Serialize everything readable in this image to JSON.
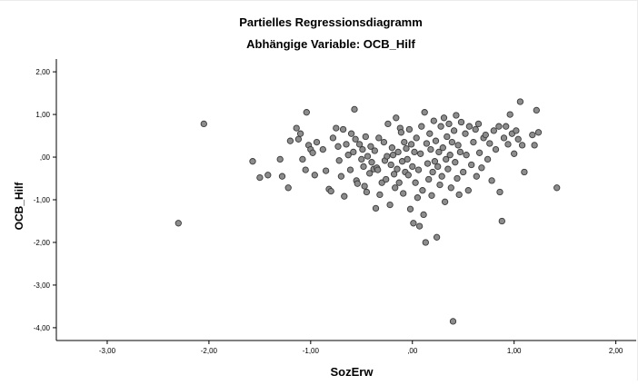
{
  "chart_data": {
    "type": "scatter",
    "title": "Partielles Regressionsdiagramm",
    "subtitle": "Abhängige Variable: OCB_Hilf",
    "xlabel": "SozErw",
    "ylabel": "OCB_Hilf",
    "xlim": [
      -3.5,
      2.2
    ],
    "ylim": [
      -4.3,
      2.3
    ],
    "x_ticks": [
      -3,
      -2,
      -1,
      0,
      1,
      2
    ],
    "x_tick_labels": [
      "-3,00",
      "-2,00",
      "-1,00",
      ",00",
      "1,00",
      "2,00"
    ],
    "y_ticks": [
      2,
      1,
      0,
      -1,
      -2,
      -3,
      -4
    ],
    "y_tick_labels": [
      "2,00",
      "1,00",
      ",00",
      "-1,00",
      "-2,00",
      "-3,00",
      "-4,00"
    ],
    "grid": false,
    "colors": {
      "point_fill": "#8c8c8c",
      "point_stroke": "#3a3a3a",
      "axis": "#000000",
      "text": "#000000"
    },
    "points": [
      [
        -2.3,
        -1.55
      ],
      [
        -2.05,
        0.78
      ],
      [
        -1.57,
        -0.1
      ],
      [
        -1.5,
        -0.48
      ],
      [
        -1.42,
        -0.42
      ],
      [
        -1.3,
        -0.05
      ],
      [
        -1.28,
        -0.45
      ],
      [
        -1.22,
        -0.72
      ],
      [
        -1.2,
        0.38
      ],
      [
        -1.14,
        0.68
      ],
      [
        -1.12,
        0.42
      ],
      [
        -1.1,
        0.55
      ],
      [
        -1.08,
        -0.05
      ],
      [
        -1.05,
        -0.3
      ],
      [
        -1.04,
        1.05
      ],
      [
        -1.02,
        0.28
      ],
      [
        -1.0,
        0.18
      ],
      [
        -0.98,
        0.1
      ],
      [
        -0.96,
        -0.42
      ],
      [
        -0.94,
        0.35
      ],
      [
        -0.88,
        0.18
      ],
      [
        -0.85,
        -0.32
      ],
      [
        -0.82,
        -0.75
      ],
      [
        -0.8,
        -0.8
      ],
      [
        -0.78,
        0.45
      ],
      [
        -0.75,
        0.68
      ],
      [
        -0.73,
        0.25
      ],
      [
        -0.72,
        -0.08
      ],
      [
        -0.7,
        -0.45
      ],
      [
        -0.68,
        0.65
      ],
      [
        -0.67,
        -0.92
      ],
      [
        -0.65,
        0.3
      ],
      [
        -0.63,
        0.05
      ],
      [
        -0.61,
        -0.3
      ],
      [
        -0.6,
        0.55
      ],
      [
        -0.58,
        0.12
      ],
      [
        -0.57,
        1.12
      ],
      [
        -0.56,
        0.42
      ],
      [
        -0.55,
        -0.55
      ],
      [
        -0.54,
        -0.62
      ],
      [
        -0.52,
        0.3
      ],
      [
        -0.5,
        -0.05
      ],
      [
        -0.49,
        0.18
      ],
      [
        -0.48,
        -0.22
      ],
      [
        -0.47,
        -0.68
      ],
      [
        -0.46,
        0.48
      ],
      [
        -0.45,
        -0.82
      ],
      [
        -0.44,
        0.02
      ],
      [
        -0.42,
        -0.38
      ],
      [
        -0.41,
        0.25
      ],
      [
        -0.4,
        -0.12
      ],
      [
        -0.38,
        -0.28
      ],
      [
        -0.37,
        0.15
      ],
      [
        -0.36,
        -1.2
      ],
      [
        -0.35,
        -0.25
      ],
      [
        -0.34,
        -0.3
      ],
      [
        -0.33,
        0.45
      ],
      [
        -0.32,
        -0.88
      ],
      [
        -0.3,
        -0.6
      ],
      [
        -0.28,
        0.35
      ],
      [
        -0.27,
        -0.08
      ],
      [
        -0.26,
        -0.52
      ],
      [
        -0.25,
        0.02
      ],
      [
        -0.24,
        0.78
      ],
      [
        -0.22,
        -1.12
      ],
      [
        -0.21,
        -0.18
      ],
      [
        -0.2,
        0.22
      ],
      [
        -0.19,
        0.05
      ],
      [
        -0.18,
        -0.4
      ],
      [
        -0.17,
        -0.72
      ],
      [
        -0.16,
        0.92
      ],
      [
        -0.15,
        -0.28
      ],
      [
        -0.14,
        0.12
      ],
      [
        -0.13,
        -0.6
      ],
      [
        -0.12,
        0.68
      ],
      [
        -0.11,
        0.58
      ],
      [
        -0.1,
        -0.1
      ],
      [
        -0.09,
        -0.85
      ],
      [
        -0.08,
        0.35
      ],
      [
        -0.07,
        -0.35
      ],
      [
        -0.06,
        0.2
      ],
      [
        -0.05,
        -0.05
      ],
      [
        -0.04,
        -0.42
      ],
      [
        -0.03,
        0.65
      ],
      [
        -0.02,
        -1.22
      ],
      [
        -0.01,
        0.3
      ],
      [
        0.0,
        -0.22
      ],
      [
        0.01,
        -1.55
      ],
      [
        0.02,
        0.12
      ],
      [
        0.03,
        -0.6
      ],
      [
        0.04,
        0.45
      ],
      [
        0.05,
        -0.95
      ],
      [
        0.06,
        -0.3
      ],
      [
        0.07,
        -1.62
      ],
      [
        0.08,
        0.08
      ],
      [
        0.09,
        0.72
      ],
      [
        0.1,
        -0.78
      ],
      [
        0.11,
        -1.35
      ],
      [
        0.12,
        1.05
      ],
      [
        0.13,
        -2.0
      ],
      [
        0.14,
        0.32
      ],
      [
        0.15,
        -0.15
      ],
      [
        0.16,
        -0.52
      ],
      [
        0.17,
        0.55
      ],
      [
        0.18,
        0.18
      ],
      [
        0.19,
        -0.9
      ],
      [
        0.2,
        -0.35
      ],
      [
        0.21,
        0.85
      ],
      [
        0.22,
        -0.1
      ],
      [
        0.23,
        0.38
      ],
      [
        0.24,
        -1.88
      ],
      [
        0.25,
        -0.22
      ],
      [
        0.26,
        0.12
      ],
      [
        0.27,
        -0.65
      ],
      [
        0.28,
        0.72
      ],
      [
        0.29,
        -0.45
      ],
      [
        0.3,
        0.22
      ],
      [
        0.31,
        0.92
      ],
      [
        0.32,
        -1.05
      ],
      [
        0.33,
        -0.05
      ],
      [
        0.34,
        0.48
      ],
      [
        0.35,
        -0.28
      ],
      [
        0.36,
        0.78
      ],
      [
        0.37,
        0.05
      ],
      [
        0.38,
        -0.72
      ],
      [
        0.39,
        0.35
      ],
      [
        0.4,
        -3.85
      ],
      [
        0.41,
        0.62
      ],
      [
        0.42,
        -0.12
      ],
      [
        0.43,
        0.98
      ],
      [
        0.44,
        -0.5
      ],
      [
        0.45,
        0.28
      ],
      [
        0.46,
        -0.88
      ],
      [
        0.47,
        0.12
      ],
      [
        0.48,
        0.82
      ],
      [
        0.5,
        -0.35
      ],
      [
        0.52,
        0.55
      ],
      [
        0.53,
        0.05
      ],
      [
        0.55,
        -0.78
      ],
      [
        0.56,
        0.72
      ],
      [
        0.58,
        -0.18
      ],
      [
        0.6,
        0.35
      ],
      [
        0.62,
        0.65
      ],
      [
        0.63,
        -0.45
      ],
      [
        0.65,
        0.78
      ],
      [
        0.66,
        0.1
      ],
      [
        0.68,
        -0.25
      ],
      [
        0.7,
        0.45
      ],
      [
        0.72,
        0.52
      ],
      [
        0.74,
        -0.05
      ],
      [
        0.76,
        0.32
      ],
      [
        0.78,
        -0.55
      ],
      [
        0.8,
        0.62
      ],
      [
        0.82,
        0.18
      ],
      [
        0.85,
        0.72
      ],
      [
        0.86,
        -0.82
      ],
      [
        0.88,
        -1.5
      ],
      [
        0.9,
        0.45
      ],
      [
        0.92,
        0.72
      ],
      [
        0.94,
        0.3
      ],
      [
        0.96,
        1.0
      ],
      [
        0.98,
        0.55
      ],
      [
        1.0,
        0.08
      ],
      [
        1.02,
        0.62
      ],
      [
        1.04,
        0.42
      ],
      [
        1.06,
        1.3
      ],
      [
        1.08,
        0.28
      ],
      [
        1.1,
        -0.35
      ],
      [
        1.18,
        0.52
      ],
      [
        1.2,
        0.28
      ],
      [
        1.22,
        1.1
      ],
      [
        1.24,
        0.58
      ],
      [
        1.42,
        -0.72
      ]
    ]
  }
}
